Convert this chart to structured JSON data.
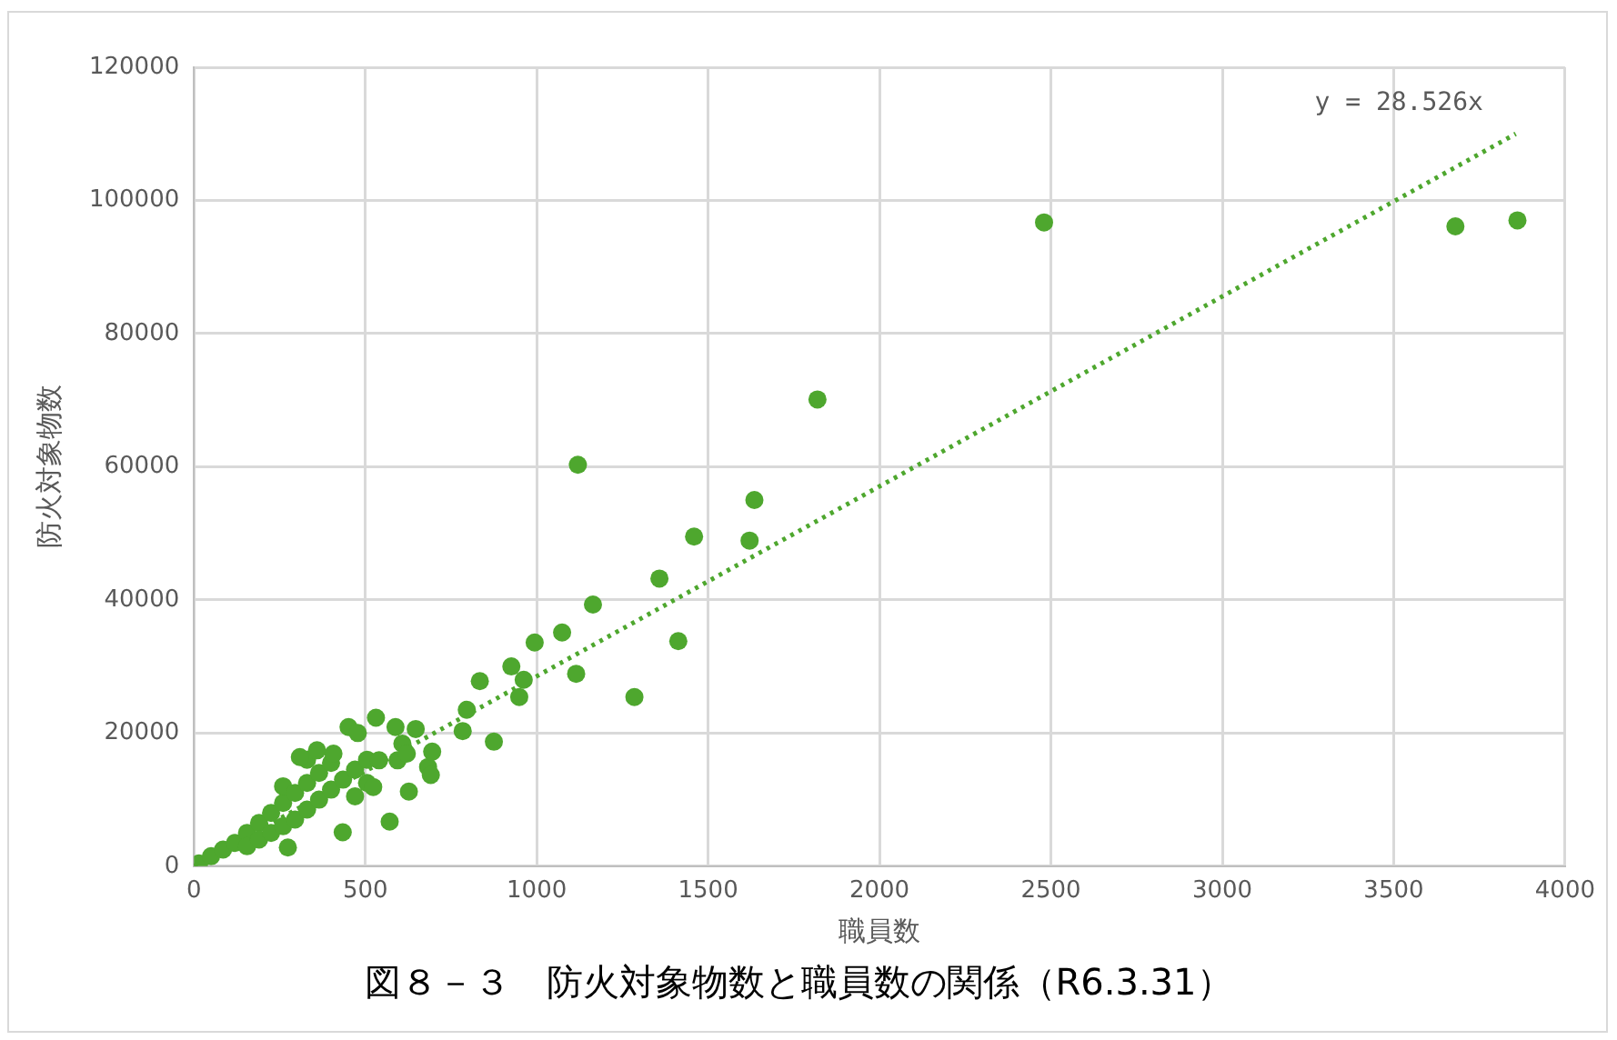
{
  "chart_data": {
    "type": "scatter",
    "title": "図８－３　防火対象物数と職員数の関係（R6.3.31）",
    "xlabel": "職員数",
    "ylabel": "防火対象物数",
    "xlim": [
      0,
      4000
    ],
    "xticks": [
      0,
      500,
      1000,
      1500,
      2000,
      2500,
      3000,
      3500,
      4000
    ],
    "ylim": [
      0,
      120000
    ],
    "yticks": [
      0,
      20000,
      40000,
      60000,
      80000,
      100000,
      120000
    ],
    "grid": true,
    "legend": false,
    "marker": "circle",
    "annotations": [
      "y = 28.526x"
    ],
    "series": [
      {
        "color": "#4ea72e",
        "x": [
          15,
          50,
          85,
          120,
          155,
          155,
          190,
          190,
          225,
          225,
          260,
          260,
          260,
          295,
          295,
          330,
          330,
          330,
          365,
          365,
          400,
          400,
          435,
          470,
          470,
          505,
          505,
          274,
          434,
          523,
          540,
          309,
          359,
          407,
          451,
          478,
          531,
          588,
          594,
          608,
          621,
          627,
          571,
          683,
          691,
          647,
          695,
          784,
          796,
          834,
          875,
          926,
          949,
          962,
          994,
          1074,
          1115,
          1120,
          1164,
          1285,
          1358,
          1413,
          1459,
          1621,
          1635,
          1819,
          2480,
          3680,
          3861
        ],
        "values": [
          400,
          1500,
          2500,
          3500,
          5000,
          3000,
          6500,
          4000,
          8000,
          5000,
          9500,
          6000,
          12000,
          11000,
          7000,
          12500,
          8500,
          16000,
          14000,
          10000,
          15500,
          11500,
          13000,
          14500,
          10500,
          16000,
          12500,
          2800,
          5100,
          11900,
          15900,
          16400,
          17400,
          16900,
          20900,
          20000,
          22300,
          20900,
          15900,
          18400,
          16900,
          11200,
          6700,
          14900,
          13700,
          20600,
          17200,
          20300,
          23500,
          27800,
          18700,
          30000,
          25400,
          28000,
          33600,
          35100,
          28900,
          60300,
          39300,
          25400,
          43200,
          33800,
          49500,
          48900,
          55000,
          70100,
          96700,
          96100,
          97000
        ]
      },
      {
        "type": "line",
        "color": "#4ea72e",
        "line_style": "dotted",
        "marker": "none",
        "x": [
          0,
          3856
        ],
        "values": [
          0,
          110000
        ]
      }
    ]
  }
}
